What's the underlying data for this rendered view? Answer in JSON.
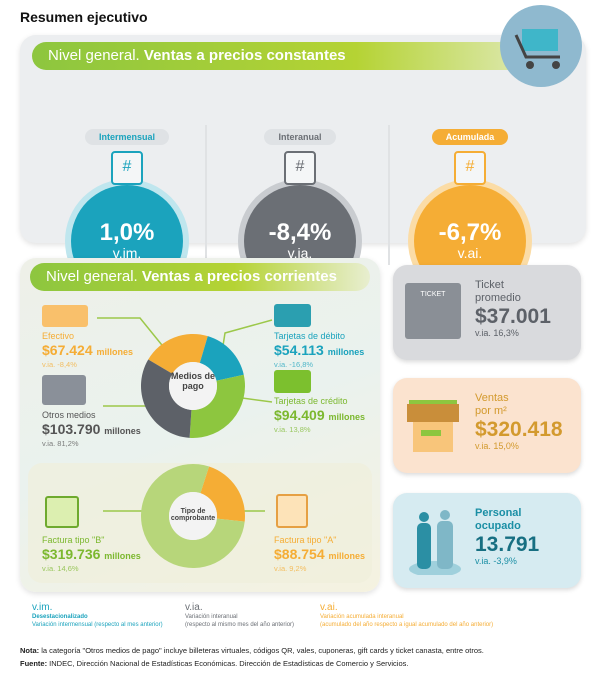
{
  "title": "Resumen ejecutivo",
  "constantes": {
    "prefix": "Nivel general.",
    "title": "Ventas a precios constantes",
    "gauges": [
      {
        "label": "Intermensual",
        "value": "1,0%",
        "unit": "v.im.",
        "color": "#1ba3bd"
      },
      {
        "label": "Interanual",
        "value": "-8,4%",
        "unit": "v.ia.",
        "color": "#6b6f75"
      },
      {
        "label": "Acumulada",
        "value": "-6,7%",
        "unit": "v.ai.",
        "color": "#f5ad35"
      }
    ]
  },
  "corrientes": {
    "prefix": "Nivel general.",
    "title": "Ventas a precios corrientes",
    "medios": {
      "center": "Medios de pago",
      "items": [
        {
          "label": "Efectivo",
          "value": "$67.424",
          "unit": "millones",
          "via": "v.ia. -8,4%",
          "amount": 67424,
          "color": "#f5ad35"
        },
        {
          "label": "Tarjetas de débito",
          "value": "$54.113",
          "unit": "millones",
          "via": "v.ia. -16,8%",
          "amount": 54113,
          "color": "#1ba3bd"
        },
        {
          "label": "Tarjetas de crédito",
          "value": "$94.409",
          "unit": "millones",
          "via": "v.ia. 13,8%",
          "amount": 94409,
          "color": "#8dc63f"
        },
        {
          "label": "Otros medios",
          "value": "$103.790",
          "unit": "millones",
          "via": "v.ia. 81,2%",
          "amount": 103790,
          "color": "#5d6168"
        }
      ]
    },
    "comprobante": {
      "center": "Tipo de comprobante",
      "items": [
        {
          "label": "Factura tipo \"A\"",
          "value": "$88.754",
          "unit": "millones",
          "via": "v.ia. 9,2%",
          "amount": 88754,
          "color": "#f5ad35"
        },
        {
          "label": "Factura tipo \"B\"",
          "value": "$319.736",
          "unit": "millones",
          "via": "v.ia. 14,6%",
          "amount": 319736,
          "color": "#b7d67a"
        }
      ]
    }
  },
  "cards": [
    {
      "label1": "Ticket",
      "label2": "promedio",
      "value": "$37.001",
      "via": "v.ia. 16,3%",
      "icon_text": "TICKET"
    },
    {
      "label1": "Ventas",
      "label2": "por m²",
      "value": "$320.418",
      "via": "v.ia. 15,0%"
    },
    {
      "label1": "Personal",
      "label2": "ocupado",
      "value": "13.791",
      "via": "v.ia. -3,9%"
    }
  ],
  "legend": [
    {
      "key": "v.im.",
      "title": "Desestacionalizado",
      "desc": "Variación intermensual (respecto al mes anterior)"
    },
    {
      "key": "v.ia.",
      "title": "Variación interanual",
      "desc": "(respecto al mismo mes del año anterior)"
    },
    {
      "key": "v.ai.",
      "title": "Variación acumulada interanual",
      "desc": "(acumulado del año respecto a igual acumulado del año anterior)"
    }
  ],
  "nota": {
    "label": "Nota:",
    "text": " la categoría \"Otros medios de pago\" incluye billeteras virtuales, códigos QR, vales, cuponeras, gift cards y ticket canasta, entre otros."
  },
  "fuente": {
    "label": "Fuente:",
    "text": " INDEC, Dirección Nacional de Estadísticas Económicas. Dirección de Estadísticas de Comercio y Servicios."
  }
}
